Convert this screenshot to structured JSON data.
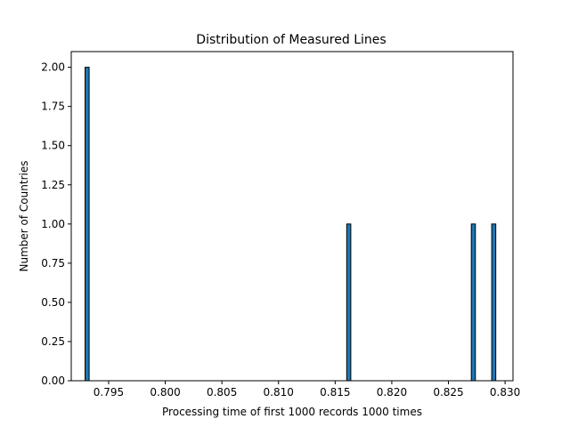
{
  "chart_data": {
    "type": "bar",
    "title": "Distribution of Measured Lines",
    "xlabel": "Processing time of first 1000 records 1000 times",
    "ylabel": "Number of Countries",
    "xlim": [
      0.7917,
      0.8307
    ],
    "ylim": [
      0,
      2.1
    ],
    "bin_width": 0.00036,
    "bins": [
      {
        "x": 0.7931,
        "count": 2
      },
      {
        "x": 0.8162,
        "count": 1
      },
      {
        "x": 0.8272,
        "count": 1
      },
      {
        "x": 0.829,
        "count": 1
      }
    ],
    "x_ticks": [
      0.795,
      0.8,
      0.805,
      0.81,
      0.815,
      0.82,
      0.825,
      0.83
    ],
    "x_tick_labels": [
      "0.795",
      "0.800",
      "0.805",
      "0.810",
      "0.815",
      "0.820",
      "0.825",
      "0.830"
    ],
    "y_ticks": [
      0,
      0.25,
      0.5,
      0.75,
      1.0,
      1.25,
      1.5,
      1.75,
      2.0
    ],
    "y_tick_labels": [
      "0.00",
      "0.25",
      "0.50",
      "0.75",
      "1.00",
      "1.25",
      "1.50",
      "1.75",
      "2.00"
    ],
    "bar_color": "#1f77b4",
    "edge_color": "#000000",
    "grid": false,
    "legend": "none"
  }
}
